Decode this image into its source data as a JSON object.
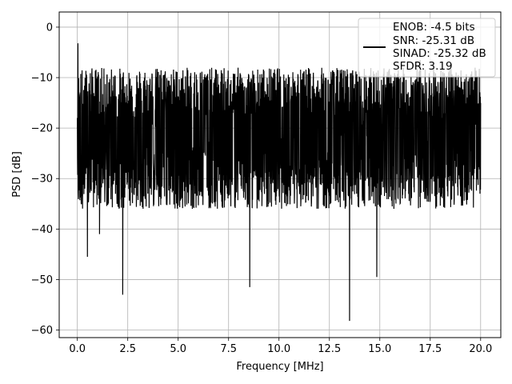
{
  "chart_data": {
    "type": "line",
    "title": "",
    "xlabel": "Frequency [MHz]",
    "ylabel": "PSD [dB]",
    "xlim": [
      -0.9,
      21.0
    ],
    "ylim": [
      -61.5,
      3.0
    ],
    "xticks": [
      0.0,
      2.5,
      5.0,
      7.5,
      10.0,
      12.5,
      15.0,
      17.5,
      20.0
    ],
    "xtick_labels": [
      "0.0",
      "2.5",
      "5.0",
      "7.5",
      "10.0",
      "12.5",
      "15.0",
      "17.5",
      "20.0"
    ],
    "yticks": [
      0,
      -10,
      -20,
      -30,
      -40,
      -50,
      -60
    ],
    "ytick_labels": [
      "0",
      "−10",
      "−20",
      "−30",
      "−40",
      "−50",
      "−60"
    ],
    "grid": true,
    "legend_position": "top-right",
    "legend_lines": [
      "ENOB: -4.5 bits",
      "SNR: -25.31 dB",
      "SINAD: -25.32 dB",
      "SFDR: 3.19"
    ],
    "series": [
      {
        "color": "#000000",
        "x_range": [
          0.0,
          20.0
        ],
        "points": 2400,
        "typical_upper_db": -13,
        "typical_lower_db": -32,
        "x": [
          0.0,
          0.03,
          0.5,
          1.1,
          2.25,
          8.55,
          13.5,
          14.85,
          17.0,
          20.0
        ],
        "y": [
          -18,
          -3.2,
          -45.5,
          -41,
          -53,
          -51.5,
          -58.2,
          -49.5,
          -6.5,
          -15
        ]
      }
    ]
  }
}
